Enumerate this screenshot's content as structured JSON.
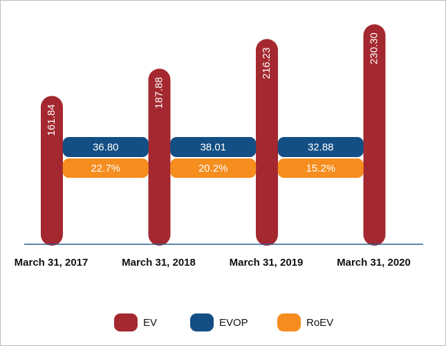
{
  "chart_data": {
    "type": "bar",
    "categories": [
      "March 31, 2017",
      "March 31, 2018",
      "March 31, 2019",
      "March 31, 2020"
    ],
    "series": [
      {
        "name": "EV",
        "color": "#a4282f",
        "values": [
          161.84,
          187.88,
          216.23,
          230.3
        ],
        "value_labels": [
          "161.84",
          "187.88",
          "216.23",
          "230.30"
        ]
      },
      {
        "name": "EVOP",
        "color": "#134f84",
        "values": [
          36.8,
          38.01,
          32.88,
          null
        ],
        "value_labels": [
          "36.80",
          "38.01",
          "32.88",
          null
        ]
      },
      {
        "name": "RoEV",
        "color": "#f58d1f",
        "values": [
          22.7,
          20.2,
          15.2,
          null
        ],
        "value_labels": [
          "22.7%",
          "20.2%",
          "15.2%",
          null
        ]
      }
    ],
    "ylim": [
      20,
      235
    ],
    "legend": "bottom"
  }
}
